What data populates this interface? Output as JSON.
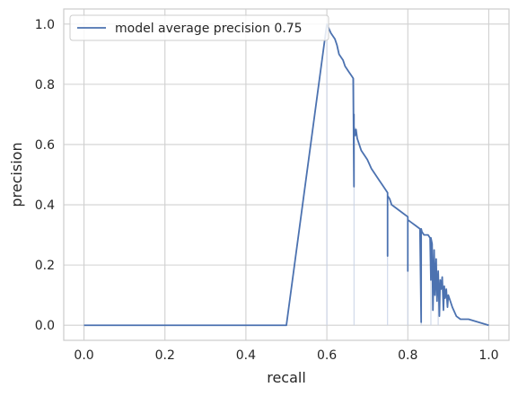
{
  "chart_data": {
    "type": "line",
    "title": "",
    "xlabel": "recall",
    "ylabel": "precision",
    "xlim": [
      -0.05,
      1.05
    ],
    "ylim": [
      -0.05,
      1.05
    ],
    "xticks": [
      "0.0",
      "0.2",
      "0.4",
      "0.6",
      "0.8",
      "1.0"
    ],
    "yticks": [
      "0.0",
      "0.2",
      "0.4",
      "0.6",
      "0.8",
      "1.0"
    ],
    "grid": true,
    "legend_position": "top-left",
    "colors": {
      "line": "#4c72b0",
      "grid": "#d0d0d0",
      "axes_edge": "#cccccc",
      "faint": "#c8d2e6"
    },
    "series": [
      {
        "name": "model average precision 0.75",
        "x": [
          0.0,
          0.5,
          0.6,
          0.61,
          0.62,
          0.625,
          0.63,
          0.64,
          0.645,
          0.65,
          0.655,
          0.66,
          0.665,
          0.667,
          0.667,
          0.667,
          0.67,
          0.672,
          0.675,
          0.68,
          0.685,
          0.69,
          0.695,
          0.7,
          0.71,
          0.72,
          0.73,
          0.74,
          0.75,
          0.75,
          0.75,
          0.755,
          0.76,
          0.77,
          0.78,
          0.79,
          0.795,
          0.8,
          0.8,
          0.8,
          0.81,
          0.82,
          0.83,
          0.833,
          0.833,
          0.835,
          0.84,
          0.85,
          0.855,
          0.857,
          0.857,
          0.86,
          0.862,
          0.865,
          0.867,
          0.87,
          0.872,
          0.875,
          0.878,
          0.88,
          0.882,
          0.885,
          0.888,
          0.89,
          0.892,
          0.895,
          0.898,
          0.9,
          0.905,
          0.91,
          0.92,
          0.93,
          0.95,
          1.0
        ],
        "y": [
          0.0,
          0.0,
          1.0,
          0.97,
          0.95,
          0.93,
          0.9,
          0.88,
          0.86,
          0.85,
          0.84,
          0.83,
          0.82,
          0.46,
          0.7,
          0.66,
          0.63,
          0.65,
          0.62,
          0.6,
          0.58,
          0.57,
          0.56,
          0.55,
          0.52,
          0.5,
          0.48,
          0.46,
          0.44,
          0.23,
          0.43,
          0.42,
          0.4,
          0.39,
          0.38,
          0.37,
          0.365,
          0.36,
          0.18,
          0.35,
          0.34,
          0.33,
          0.32,
          0.01,
          0.32,
          0.31,
          0.3,
          0.3,
          0.29,
          0.15,
          0.29,
          0.27,
          0.05,
          0.25,
          0.1,
          0.22,
          0.08,
          0.18,
          0.03,
          0.15,
          0.12,
          0.16,
          0.05,
          0.13,
          0.09,
          0.12,
          0.06,
          0.1,
          0.08,
          0.06,
          0.03,
          0.02,
          0.02,
          0.0
        ]
      }
    ],
    "faint_lines": [
      [
        0.6,
        0.0,
        0.6,
        1.0
      ],
      [
        0.667,
        0.0,
        0.667,
        0.82
      ],
      [
        0.75,
        0.0,
        0.75,
        0.44
      ],
      [
        0.8,
        0.0,
        0.8,
        0.36
      ],
      [
        0.833,
        0.0,
        0.833,
        0.32
      ],
      [
        0.857,
        0.0,
        0.857,
        0.29
      ],
      [
        0.875,
        0.0,
        0.875,
        0.18
      ]
    ]
  }
}
